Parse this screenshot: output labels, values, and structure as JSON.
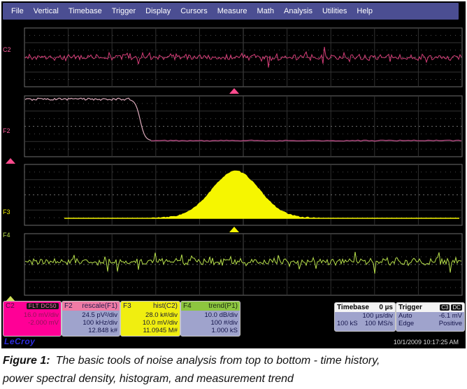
{
  "menu": {
    "items": [
      "File",
      "Vertical",
      "Timebase",
      "Trigger",
      "Display",
      "Cursors",
      "Measure",
      "Math",
      "Analysis",
      "Utilities",
      "Help"
    ]
  },
  "traces": [
    {
      "label": "C2",
      "type": "time-history",
      "color": "#d63d78",
      "label_color": "#ff5f9e"
    },
    {
      "label": "F2",
      "type": "power-spectral-density",
      "color": "#dcaabb",
      "baseline_color": "#b2487f",
      "label_color": "#ff5f9e"
    },
    {
      "label": "F3",
      "type": "histogram",
      "color": "#f6f600",
      "label_color": "#f6f600"
    },
    {
      "label": "F4",
      "type": "trend",
      "color": "#b7e04b",
      "label_color": "#bce34d"
    }
  ],
  "descriptors": {
    "c2": {
      "id": "C2",
      "badge": "FLT DC50",
      "line1": "16.0 mV/div",
      "line2": "-2.000 mV"
    },
    "f2": {
      "id": "F2",
      "title": "rescale(F1)",
      "line1": "24.5 pV²/div",
      "line2": "100 kHz/div",
      "line3": "12.848 k#"
    },
    "f3": {
      "id": "F3",
      "title": "hist(C2)",
      "line1": "28.0 k#/div",
      "line2": "10.0 mV/div",
      "line3": "11.0945 M#"
    },
    "f4": {
      "id": "F4",
      "title": "trend(P1)",
      "line1": "10.0 dB/div",
      "line2": "100 #/div",
      "line3": "1.000 kS"
    }
  },
  "timebase": {
    "title": "Timebase",
    "value": "0 µs",
    "per_div": "100 µs/div",
    "samples": "100 kS",
    "rate": "100 MS/s"
  },
  "trigger": {
    "title": "Trigger",
    "badges": [
      "C3",
      "DC"
    ],
    "mode": "Auto",
    "level": "-6.1 mV",
    "type": "Edge",
    "slope": "Positive"
  },
  "footer": {
    "logo": "LeCroy",
    "timestamp": "10/1/2009 10:17:25 AM"
  },
  "caption": {
    "label": "Figure 1:",
    "line1": "The basic tools of noise analysis from top to bottom - time history,",
    "line2": "power spectral density, histogram, and measurement trend"
  },
  "colors": {
    "menu_bg": "#4b4e92",
    "c2_box": "#ff0096",
    "f2_header": "#ef7ba5",
    "f3_box": "#f0ee10",
    "f4_header": "#8dc63f",
    "descriptor_body": "#9fa3cc",
    "trigger_marker_pink": "#ff4b8e",
    "histogram_marker_yellow": "#f6f600",
    "trend_marker_green": "#cfe05a"
  }
}
